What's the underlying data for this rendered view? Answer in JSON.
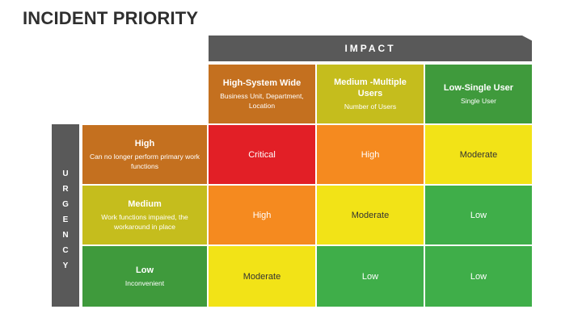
{
  "title": "INCIDENT PRIORITY",
  "axes": {
    "impact": "IMPACT",
    "urgency": "URGENCY",
    "urgency_letters": [
      "U",
      "R",
      "G",
      "E",
      "N",
      "C",
      "Y"
    ]
  },
  "colors": {
    "axis_bar": "#595959",
    "critical": "#e21f26",
    "high": "#f58a1f",
    "moderate": "#f2e317",
    "low": "#3fae49",
    "header_orange": "#c4701f",
    "header_olive": "#c5bd1d",
    "header_green": "#3f9a3c"
  },
  "impact_headers": [
    {
      "title": "High-System Wide",
      "subtitle": "Business Unit, Department, Location"
    },
    {
      "title": "Medium -Multiple Users",
      "subtitle": "Number of Users"
    },
    {
      "title": "Low-Single User",
      "subtitle": "Single User"
    }
  ],
  "urgency_headers": [
    {
      "title": "High",
      "subtitle": "Can no longer perform primary work functions"
    },
    {
      "title": "Medium",
      "subtitle": "Work functions impaired, the workaround in place"
    },
    {
      "title": "Low",
      "subtitle": "Inconvenient"
    }
  ],
  "matrix": [
    [
      "Critical",
      "High",
      "Moderate"
    ],
    [
      "High",
      "Moderate",
      "Low"
    ],
    [
      "Moderate",
      "Low",
      "Low"
    ]
  ]
}
